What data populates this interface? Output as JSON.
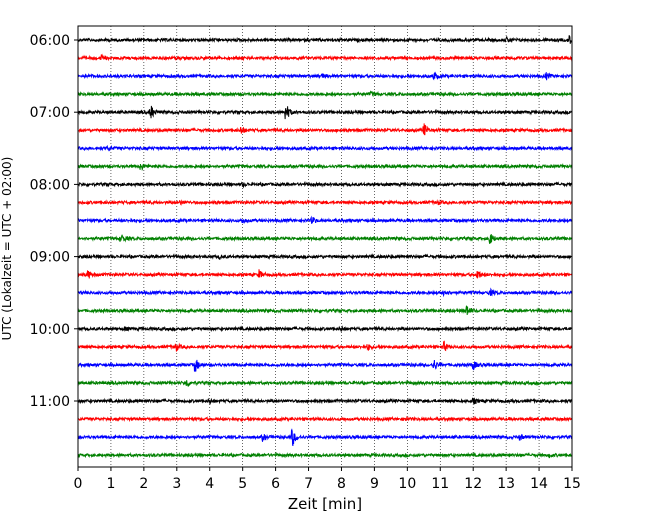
{
  "chart_data": {
    "type": "line",
    "xlabel": "Zeit  [min]",
    "ylabel": "UTC (Lokalzeit = UTC + 02:00)",
    "xlim": [
      0,
      15
    ],
    "xticks": [
      0,
      1,
      2,
      3,
      4,
      5,
      6,
      7,
      8,
      9,
      10,
      11,
      12,
      13,
      14,
      15
    ],
    "ytick_labels": [
      "06:00",
      "07:00",
      "08:00",
      "09:00",
      "10:00",
      "11:00"
    ],
    "grid": "vertical dotted",
    "trace_interval_min": 15,
    "start_time": "06:00",
    "colors_cycle": [
      "#000000",
      "#ff0000",
      "#0000ff",
      "#008000"
    ],
    "traces": [
      {
        "time": "06:00",
        "color": "#000000",
        "events": [
          {
            "t": 13.0,
            "amp": 0.3
          },
          {
            "t": 14.9,
            "amp": 0.5
          }
        ]
      },
      {
        "time": "06:15",
        "color": "#ff0000",
        "events": [
          {
            "t": 0.7,
            "amp": 0.3
          }
        ]
      },
      {
        "time": "06:30",
        "color": "#0000ff",
        "events": [
          {
            "t": 7.4,
            "amp": 0.3
          },
          {
            "t": 10.8,
            "amp": 0.4
          },
          {
            "t": 14.2,
            "amp": 0.4
          }
        ]
      },
      {
        "time": "06:45",
        "color": "#008000",
        "events": [
          {
            "t": 8.9,
            "amp": 0.2
          }
        ]
      },
      {
        "time": "07:00",
        "color": "#000000",
        "events": [
          {
            "t": 2.2,
            "amp": 0.9
          },
          {
            "t": 6.3,
            "amp": 1.2
          }
        ]
      },
      {
        "time": "07:15",
        "color": "#ff0000",
        "events": [
          {
            "t": 4.95,
            "amp": 0.5
          },
          {
            "t": 10.5,
            "amp": 0.8
          }
        ]
      },
      {
        "time": "07:30",
        "color": "#0000ff",
        "events": [
          {
            "t": 0.9,
            "amp": 0.2
          }
        ]
      },
      {
        "time": "07:45",
        "color": "#008000",
        "events": [
          {
            "t": 1.9,
            "amp": 0.5
          }
        ]
      },
      {
        "time": "08:00",
        "color": "#000000",
        "events": [
          {
            "t": 5.0,
            "amp": 0.2
          }
        ]
      },
      {
        "time": "08:15",
        "color": "#ff0000",
        "events": [
          {
            "t": 3.1,
            "amp": 0.2
          },
          {
            "t": 10.9,
            "amp": 0.2
          }
        ]
      },
      {
        "time": "08:30",
        "color": "#0000ff",
        "events": [
          {
            "t": 5.0,
            "amp": 0.3
          },
          {
            "t": 7.1,
            "amp": 0.4
          }
        ]
      },
      {
        "time": "08:45",
        "color": "#008000",
        "events": [
          {
            "t": 1.3,
            "amp": 0.6
          },
          {
            "t": 12.5,
            "amp": 0.7
          }
        ]
      },
      {
        "time": "09:00",
        "color": "#000000",
        "events": [
          {
            "t": 4.3,
            "amp": 0.2
          }
        ]
      },
      {
        "time": "09:15",
        "color": "#ff0000",
        "events": [
          {
            "t": 0.3,
            "amp": 0.5
          },
          {
            "t": 5.5,
            "amp": 0.5
          },
          {
            "t": 12.1,
            "amp": 0.7
          }
        ]
      },
      {
        "time": "09:30",
        "color": "#0000ff",
        "events": [
          {
            "t": 11.1,
            "amp": 0.5
          },
          {
            "t": 12.5,
            "amp": 0.4
          }
        ]
      },
      {
        "time": "09:45",
        "color": "#008000",
        "events": [
          {
            "t": 11.8,
            "amp": 0.7
          }
        ]
      },
      {
        "time": "10:00",
        "color": "#000000",
        "events": [
          {
            "t": 1.4,
            "amp": 0.2
          },
          {
            "t": 8.0,
            "amp": 0.2
          }
        ]
      },
      {
        "time": "10:15",
        "color": "#ff0000",
        "events": [
          {
            "t": 2.95,
            "amp": 0.6
          },
          {
            "t": 8.8,
            "amp": 0.4
          },
          {
            "t": 11.1,
            "amp": 0.6
          }
        ]
      },
      {
        "time": "10:30",
        "color": "#0000ff",
        "events": [
          {
            "t": 3.55,
            "amp": 0.9
          },
          {
            "t": 10.8,
            "amp": 0.7
          },
          {
            "t": 12.0,
            "amp": 0.5
          }
        ]
      },
      {
        "time": "10:45",
        "color": "#008000",
        "events": [
          {
            "t": 3.3,
            "amp": 0.5
          }
        ]
      },
      {
        "time": "11:00",
        "color": "#000000",
        "events": [
          {
            "t": 4.0,
            "amp": 0.2
          },
          {
            "t": 12.0,
            "amp": 0.3
          }
        ]
      },
      {
        "time": "11:15",
        "color": "#ff0000",
        "events": [
          {
            "t": 9.9,
            "amp": 0.2
          }
        ]
      },
      {
        "time": "11:30",
        "color": "#0000ff",
        "events": [
          {
            "t": 5.6,
            "amp": 0.4
          },
          {
            "t": 6.5,
            "amp": 1.2
          },
          {
            "t": 13.4,
            "amp": 0.3
          }
        ]
      },
      {
        "time": "11:45",
        "color": "#008000",
        "events": [
          {
            "t": 14.3,
            "amp": 0.2
          }
        ]
      }
    ]
  }
}
